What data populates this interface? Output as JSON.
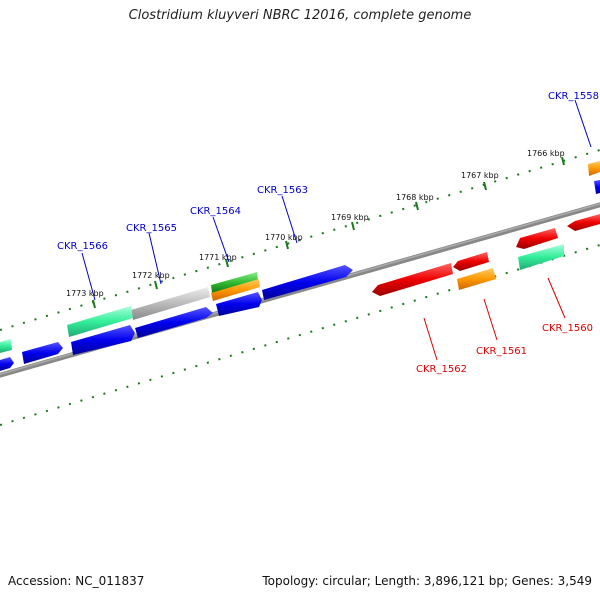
{
  "title": "Clostridium kluyveri NBRC 12016, complete genome",
  "footer": {
    "accession": "Accession: NC_011837",
    "summary": "Topology: circular; Length: 3,896,121 bp; Genes: 3,549"
  },
  "colors": {
    "background": "#ffffff",
    "backbone": "#808080",
    "tick": "#1a7a1a",
    "forward_label": "#0000cc",
    "reverse_label": "#dd0000",
    "blue": "#0000ee",
    "red": "#ee0000",
    "orange": "#ff9900",
    "teal": "#33ee99",
    "gray": "#bbbbbb",
    "green": "#33bb33"
  },
  "ticks": [
    "1766 kbp",
    "1767 kbp",
    "1768 kbp",
    "1769 kbp",
    "1770 kbp",
    "1771 kbp",
    "1772 kbp",
    "1773 kbp"
  ],
  "genes": [
    {
      "id": "CKR_1558",
      "strand": "forward",
      "color": "orange"
    },
    {
      "id": "CKR_1560",
      "strand": "reverse",
      "color": "teal"
    },
    {
      "id": "CKR_1561",
      "strand": "reverse",
      "color": "orange"
    },
    {
      "id": "CKR_1562",
      "strand": "reverse",
      "color": "red"
    },
    {
      "id": "CKR_1563",
      "strand": "forward",
      "color": "blue"
    },
    {
      "id": "CKR_1564",
      "strand": "forward",
      "color": "green"
    },
    {
      "id": "CKR_1565",
      "strand": "forward",
      "color": "gray"
    },
    {
      "id": "CKR_1566",
      "strand": "forward",
      "color": "teal"
    }
  ]
}
